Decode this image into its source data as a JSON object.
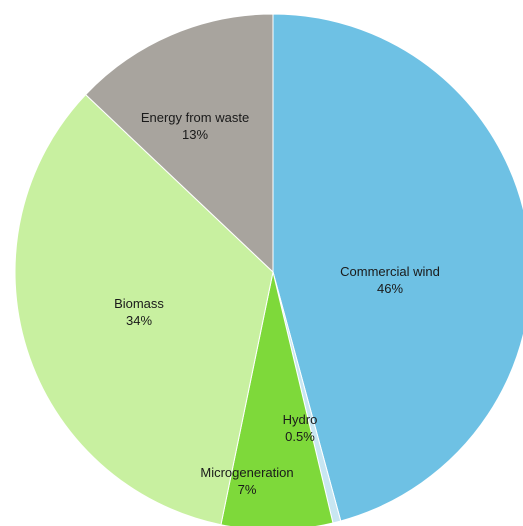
{
  "chart_data": {
    "type": "pie",
    "title": "",
    "start_angle_deg": 0,
    "direction": "clockwise",
    "slices": [
      {
        "name": "Commercial wind",
        "value": 46,
        "value_label": "46%",
        "color": "#6ec1e4"
      },
      {
        "name": "Hydro",
        "value": 0.5,
        "value_label": "0.5%",
        "color": "#c8e6f2"
      },
      {
        "name": "Microgeneration",
        "value": 7,
        "value_label": "7%",
        "color": "#7ed93a"
      },
      {
        "name": "Biomass",
        "value": 34,
        "value_label": "34%",
        "color": "#c8f0a0"
      },
      {
        "name": "Energy from waste",
        "value": 13,
        "value_label": "13%",
        "color": "#a8a49e"
      }
    ]
  }
}
